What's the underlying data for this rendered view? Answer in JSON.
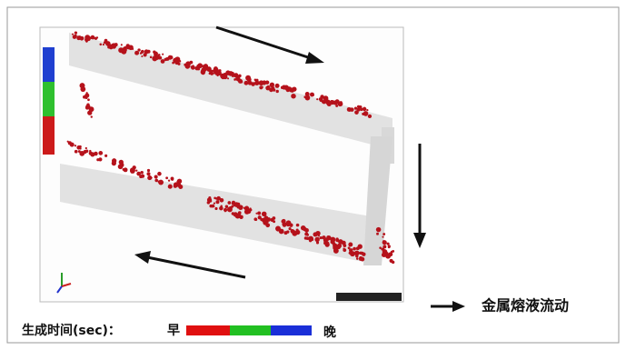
{
  "legend": {
    "flow_label": "金属熔液流动",
    "time_label": "生成时间(sec)：",
    "early": "早",
    "late": "晚"
  }
}
